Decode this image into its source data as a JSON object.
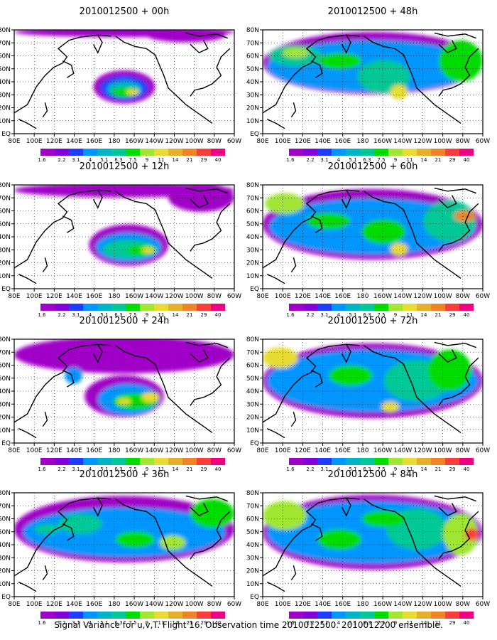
{
  "caption": "Signal Variance for u,v,T. Flight 16. Observation time 2010012500. 2010012200 ensemble.",
  "map": {
    "lon_labels": [
      "80E",
      "100E",
      "120E",
      "140E",
      "160E",
      "180",
      "160W",
      "140W",
      "120W",
      "100W",
      "80W",
      "60W"
    ],
    "lat_labels": [
      "80N",
      "70N",
      "60N",
      "50N",
      "40N",
      "30N",
      "20N",
      "10N",
      "EQ"
    ]
  },
  "colorbar": {
    "levels": [
      "1.6",
      "2.2",
      "3.1",
      "4",
      "5.1",
      "6.3",
      "7.5",
      "9",
      "11",
      "14",
      "21",
      "29",
      "40"
    ],
    "colors": [
      "#a000c8",
      "#8200dc",
      "#1e3cff",
      "#0096ff",
      "#00b4c8",
      "#00c896",
      "#00dc00",
      "#a0e632",
      "#e6dc32",
      "#e6af2d",
      "#f08228",
      "#fa3c3c",
      "#f00082"
    ]
  },
  "panels": [
    {
      "title": "2010012500 + 00h"
    },
    {
      "title": "2010012500 + 48h"
    },
    {
      "title": "2010012500 + 12h"
    },
    {
      "title": "2010012500 + 60h"
    },
    {
      "title": "2010012500 + 24h"
    },
    {
      "title": "2010012500 + 72h"
    },
    {
      "title": "2010012500 + 36h"
    },
    {
      "title": "2010012500 + 84h"
    }
  ]
}
